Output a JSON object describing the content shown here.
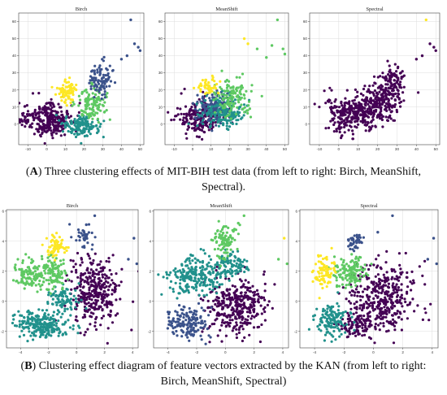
{
  "figure": {
    "caption_a": {
      "letter": "A",
      "line1": ") Three clustering effects of MIT-BIH test data (from left to right: Birch, MeanShift,",
      "line2": "Spectral)."
    },
    "caption_b": {
      "letter": "B",
      "line1": ") Clustering effect diagram of feature vectors extracted by the KAN (from left to right:",
      "line2": "Birch, MeanShift, Spectral)"
    }
  },
  "colors": {
    "purple": "#440154",
    "indigo": "#3b528b",
    "teal": "#21918c",
    "green": "#5ec962",
    "yellow": "#fde725",
    "grid": "#dddddd",
    "axis": "#444444"
  },
  "chart_data": [
    {
      "type": "scatter",
      "row": "A",
      "title": "Birch",
      "xlim": [
        -15,
        52
      ],
      "ylim": [
        -12,
        65
      ],
      "grid": true,
      "xticks": [
        -10,
        0,
        10,
        20,
        30,
        40,
        50
      ],
      "yticks": [
        0,
        10,
        20,
        30,
        40,
        50,
        60
      ],
      "clusters": [
        {
          "color": "#440154",
          "cx": 2,
          "cy": 3,
          "rx": 11,
          "ry": 9,
          "n": 230,
          "anchor": [
            [
              -12,
              3
            ],
            [
              -3,
              -2
            ],
            [
              5,
              2
            ]
          ]
        },
        {
          "color": "#21918c",
          "cx": 18,
          "cy": -1,
          "rx": 9,
          "ry": 5,
          "n": 150
        },
        {
          "color": "#5ec962",
          "cx": 24,
          "cy": 13,
          "rx": 7,
          "ry": 9,
          "n": 120
        },
        {
          "color": "#fde725",
          "cx": 11,
          "cy": 19,
          "rx": 4.5,
          "ry": 6,
          "n": 80
        },
        {
          "color": "#3b528b",
          "cx": 29,
          "cy": 26,
          "rx": 7,
          "ry": 9,
          "n": 90
        }
      ],
      "outliers": [
        {
          "color": "#3b528b",
          "x": 45,
          "y": 61
        },
        {
          "color": "#3b528b",
          "x": 47,
          "y": 47
        },
        {
          "color": "#3b528b",
          "x": 49,
          "y": 45
        },
        {
          "color": "#3b528b",
          "x": 43,
          "y": 40
        },
        {
          "color": "#3b528b",
          "x": 40,
          "y": 38
        },
        {
          "color": "#3b528b",
          "x": 50,
          "y": 43
        }
      ]
    },
    {
      "type": "scatter",
      "row": "A",
      "title": "MeanShift",
      "xlim": [
        -15,
        52
      ],
      "ylim": [
        -12,
        65
      ],
      "grid": true,
      "xticks": [
        -10,
        0,
        10,
        20,
        30,
        40,
        50
      ],
      "yticks": [
        0,
        10,
        20,
        30,
        40,
        50,
        60
      ],
      "clusters": [
        {
          "color": "#440154",
          "cx": 4,
          "cy": 4,
          "rx": 12,
          "ry": 9,
          "n": 220
        },
        {
          "color": "#3b528b",
          "cx": 12,
          "cy": 10,
          "rx": 8,
          "ry": 8,
          "n": 140
        },
        {
          "color": "#21918c",
          "cx": 16,
          "cy": 6,
          "rx": 11,
          "ry": 9,
          "n": 170
        },
        {
          "color": "#5ec962",
          "cx": 22,
          "cy": 16,
          "rx": 9,
          "ry": 11,
          "n": 120
        },
        {
          "color": "#fde725",
          "cx": 8,
          "cy": 22,
          "rx": 5,
          "ry": 4,
          "n": 50
        }
      ],
      "outliers": [
        {
          "color": "#5ec962",
          "x": 46,
          "y": 61
        },
        {
          "color": "#5ec962",
          "x": 43,
          "y": 46
        },
        {
          "color": "#5ec962",
          "x": 49,
          "y": 44
        },
        {
          "color": "#5ec962",
          "x": 40,
          "y": 39
        },
        {
          "color": "#5ec962",
          "x": 35,
          "y": 44
        },
        {
          "color": "#fde725",
          "x": 28,
          "y": 50
        },
        {
          "color": "#fde725",
          "x": 30,
          "y": 47
        },
        {
          "color": "#5ec962",
          "x": 50,
          "y": 41
        }
      ]
    },
    {
      "type": "scatter",
      "row": "A",
      "title": "Spectral",
      "xlim": [
        -15,
        52
      ],
      "ylim": [
        -12,
        65
      ],
      "grid": true,
      "xticks": [
        -10,
        0,
        10,
        20,
        30,
        40,
        50
      ],
      "yticks": [
        0,
        10,
        20,
        30,
        40,
        50,
        60
      ],
      "clusters": [
        {
          "color": "#440154",
          "cx": 8,
          "cy": 6,
          "rx": 14,
          "ry": 10,
          "n": 300
        },
        {
          "color": "#440154",
          "cx": 22,
          "cy": 14,
          "rx": 9,
          "ry": 10,
          "n": 200
        },
        {
          "color": "#440154",
          "cx": 28,
          "cy": 26,
          "rx": 6,
          "ry": 8,
          "n": 80
        }
      ],
      "outliers": [
        {
          "color": "#fde725",
          "x": 45,
          "y": 61
        },
        {
          "color": "#440154",
          "x": 47,
          "y": 47
        },
        {
          "color": "#440154",
          "x": 49,
          "y": 45
        },
        {
          "color": "#440154",
          "x": 43,
          "y": 40
        },
        {
          "color": "#440154",
          "x": 40,
          "y": 38
        },
        {
          "color": "#440154",
          "x": 50,
          "y": 43
        }
      ]
    },
    {
      "type": "scatter",
      "row": "B",
      "title": "Birch",
      "xlim": [
        -5,
        4.4
      ],
      "ylim": [
        -3.1,
        6.1
      ],
      "grid": true,
      "xticks": [
        -4,
        -2,
        0,
        2,
        4
      ],
      "yticks": [
        -2,
        0,
        2,
        4,
        6
      ],
      "clusters": [
        {
          "color": "#440154",
          "cx": 1.3,
          "cy": 0.6,
          "rx": 1.5,
          "ry": 2.0,
          "n": 330
        },
        {
          "color": "#21918c",
          "cx": -2.4,
          "cy": -1.6,
          "rx": 1.7,
          "ry": 0.8,
          "n": 230
        },
        {
          "color": "#21918c",
          "cx": -0.9,
          "cy": 0.2,
          "rx": 1.0,
          "ry": 0.9,
          "n": 90
        },
        {
          "color": "#5ec962",
          "cx": -3.2,
          "cy": 1.8,
          "rx": 1.0,
          "ry": 0.8,
          "n": 120
        },
        {
          "color": "#5ec962",
          "cx": -1.6,
          "cy": 1.8,
          "rx": 0.8,
          "ry": 1.0,
          "n": 100
        },
        {
          "color": "#fde725",
          "cx": -1.5,
          "cy": 3.7,
          "rx": 0.6,
          "ry": 0.6,
          "n": 70
        },
        {
          "color": "#3b528b",
          "cx": 0.4,
          "cy": 4.3,
          "rx": 0.6,
          "ry": 0.6,
          "n": 35
        }
      ],
      "outliers": [
        {
          "color": "#3b528b",
          "x": 1.3,
          "y": 5.7
        },
        {
          "color": "#3b528b",
          "x": 4.1,
          "y": 4.2
        },
        {
          "color": "#3b528b",
          "x": 3.7,
          "y": 2.8
        },
        {
          "color": "#3b528b",
          "x": 4.3,
          "y": 2.5
        },
        {
          "color": "#3b528b",
          "x": 0.7,
          "y": 5.1
        }
      ]
    },
    {
      "type": "scatter",
      "row": "B",
      "title": "MeanShift",
      "xlim": [
        -5,
        4.4
      ],
      "ylim": [
        -3.1,
        6.1
      ],
      "grid": true,
      "xticks": [
        -4,
        -2,
        0,
        2,
        4
      ],
      "yticks": [
        -2,
        0,
        2,
        4,
        6
      ],
      "clusters": [
        {
          "color": "#440154",
          "cx": 0.7,
          "cy": -0.3,
          "rx": 1.9,
          "ry": 1.7,
          "n": 340
        },
        {
          "color": "#21918c",
          "cx": -2.0,
          "cy": 1.7,
          "rx": 1.9,
          "ry": 1.1,
          "n": 230
        },
        {
          "color": "#21918c",
          "cx": 0.4,
          "cy": 2.4,
          "rx": 1.1,
          "ry": 0.7,
          "n": 90
        },
        {
          "color": "#3b528b",
          "cx": -2.6,
          "cy": -1.4,
          "rx": 1.2,
          "ry": 0.9,
          "n": 150
        },
        {
          "color": "#5ec962",
          "cx": -0.1,
          "cy": 4.0,
          "rx": 0.8,
          "ry": 1.0,
          "n": 90
        }
      ],
      "outliers": [
        {
          "color": "#5ec962",
          "x": 1.3,
          "y": 5.7
        },
        {
          "color": "#5ec962",
          "x": 3.7,
          "y": 2.8
        },
        {
          "color": "#5ec962",
          "x": 4.3,
          "y": 2.5
        },
        {
          "color": "#fde725",
          "x": 4.1,
          "y": 4.2
        },
        {
          "color": "#5ec962",
          "x": 0.9,
          "y": 5.2
        }
      ]
    },
    {
      "type": "scatter",
      "row": "B",
      "title": "Spectral",
      "xlim": [
        -5,
        4.4
      ],
      "ylim": [
        -3.1,
        6.1
      ],
      "grid": true,
      "xticks": [
        -4,
        -2,
        0,
        2,
        4
      ],
      "yticks": [
        -2,
        0,
        2,
        4,
        6
      ],
      "clusters": [
        {
          "color": "#440154",
          "cx": 0.6,
          "cy": 0.3,
          "rx": 2.1,
          "ry": 2.1,
          "n": 380
        },
        {
          "color": "#440154",
          "cx": -1.2,
          "cy": -1.6,
          "rx": 1.0,
          "ry": 0.8,
          "n": 100
        },
        {
          "color": "#21918c",
          "cx": -2.9,
          "cy": -1.3,
          "rx": 1.0,
          "ry": 0.9,
          "n": 130
        },
        {
          "color": "#5ec962",
          "cx": -1.5,
          "cy": 2.0,
          "rx": 1.0,
          "ry": 1.0,
          "n": 130
        },
        {
          "color": "#fde725",
          "cx": -3.3,
          "cy": 1.9,
          "rx": 0.6,
          "ry": 0.9,
          "n": 80
        },
        {
          "color": "#3b528b",
          "cx": -1.3,
          "cy": 3.9,
          "rx": 0.5,
          "ry": 0.5,
          "n": 40
        }
      ],
      "outliers": [
        {
          "color": "#3b528b",
          "x": 1.3,
          "y": 5.7
        },
        {
          "color": "#3b528b",
          "x": 4.1,
          "y": 4.2
        },
        {
          "color": "#3b528b",
          "x": 3.7,
          "y": 2.8
        },
        {
          "color": "#3b528b",
          "x": 4.3,
          "y": 2.5
        },
        {
          "color": "#3b528b",
          "x": 0.3,
          "y": 4.6
        }
      ]
    }
  ]
}
